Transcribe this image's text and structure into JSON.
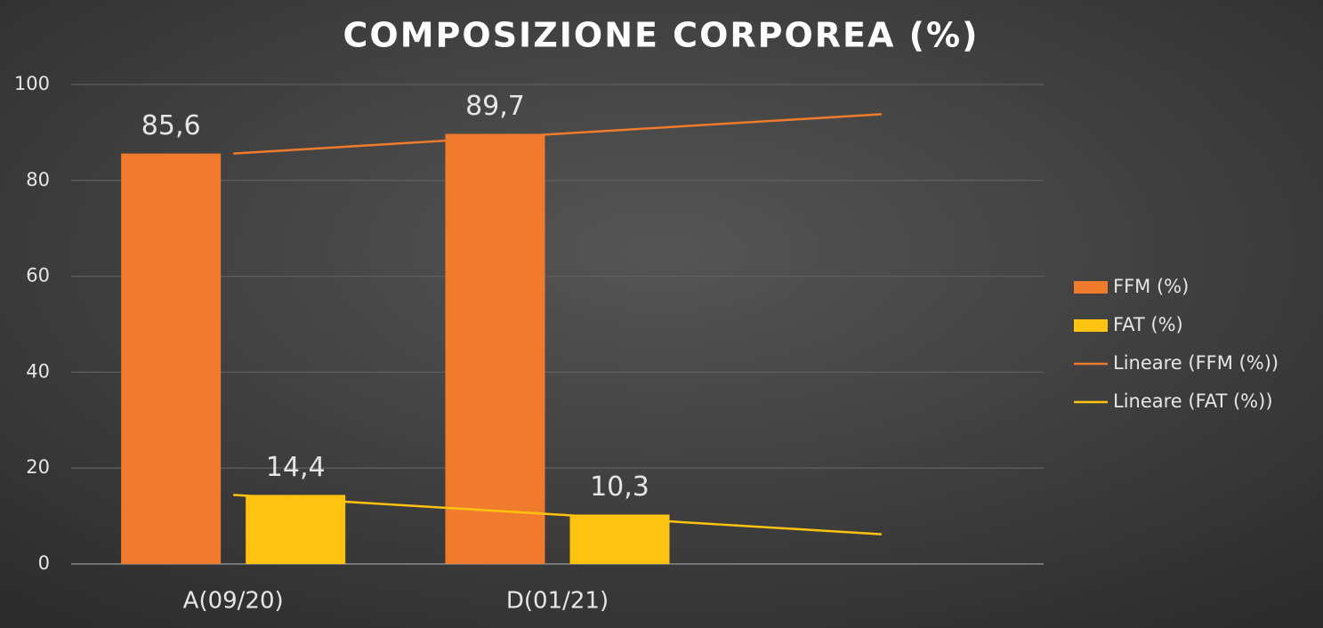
{
  "chart_data": {
    "type": "bar",
    "title": "COMPOSIZIONE CORPOREA (%)",
    "categories": [
      "A(09/20)",
      "D(01/21)",
      null
    ],
    "series": [
      {
        "name": "FFM (%)",
        "color": "#f07b2c",
        "values": [
          85.6,
          89.7,
          null
        ],
        "value_labels": [
          "85,6",
          "89,7",
          null
        ]
      },
      {
        "name": "FAT (%)",
        "color": "#ffc20e",
        "values": [
          14.4,
          10.3,
          null
        ],
        "value_labels": [
          "14,4",
          "10,3",
          null
        ]
      },
      {
        "name": "Lineare (FFM (%))",
        "type": "line",
        "color": "#f07b2c",
        "values": [
          85.6,
          89.7,
          93.8
        ]
      },
      {
        "name": "Lineare (FAT (%))",
        "type": "line",
        "color": "#ffc20e",
        "values": [
          14.4,
          10.3,
          6.2
        ]
      }
    ],
    "ylim": [
      0,
      100
    ],
    "yticks": [
      0,
      20,
      40,
      60,
      80,
      100
    ],
    "grid": true,
    "legend": "right"
  }
}
